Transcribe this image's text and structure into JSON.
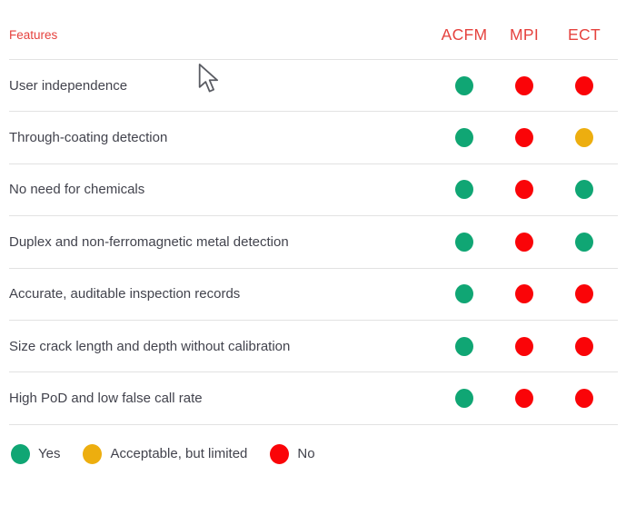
{
  "header": {
    "features_label": "Features",
    "columns": [
      "ACFM",
      "MPI",
      "ECT"
    ]
  },
  "rows": [
    {
      "feature": "User independence",
      "values": [
        "yes",
        "no",
        "no"
      ]
    },
    {
      "feature": "Through-coating detection",
      "values": [
        "yes",
        "no",
        "limited"
      ]
    },
    {
      "feature": "No need for chemicals",
      "values": [
        "yes",
        "no",
        "yes"
      ]
    },
    {
      "feature": "Duplex and non-ferromagnetic metal detection",
      "values": [
        "yes",
        "no",
        "yes"
      ]
    },
    {
      "feature": "Accurate, auditable inspection records",
      "values": [
        "yes",
        "no",
        "no"
      ]
    },
    {
      "feature": "Size crack length and depth without calibration",
      "values": [
        "yes",
        "no",
        "no"
      ]
    },
    {
      "feature": "High PoD and low false call rate",
      "values": [
        "yes",
        "no",
        "no"
      ]
    }
  ],
  "legend": [
    {
      "status": "yes",
      "label": "Yes"
    },
    {
      "status": "limited",
      "label": "Acceptable, but limited"
    },
    {
      "status": "no",
      "label": "No"
    }
  ],
  "colors": {
    "yes": "#10a674",
    "limited": "#edae0f",
    "no": "#fa0408",
    "header_red": "#e5423e",
    "text": "#42434d",
    "divider": "#e2e2e2"
  },
  "icons": {
    "cursor": "mouse-cursor"
  }
}
